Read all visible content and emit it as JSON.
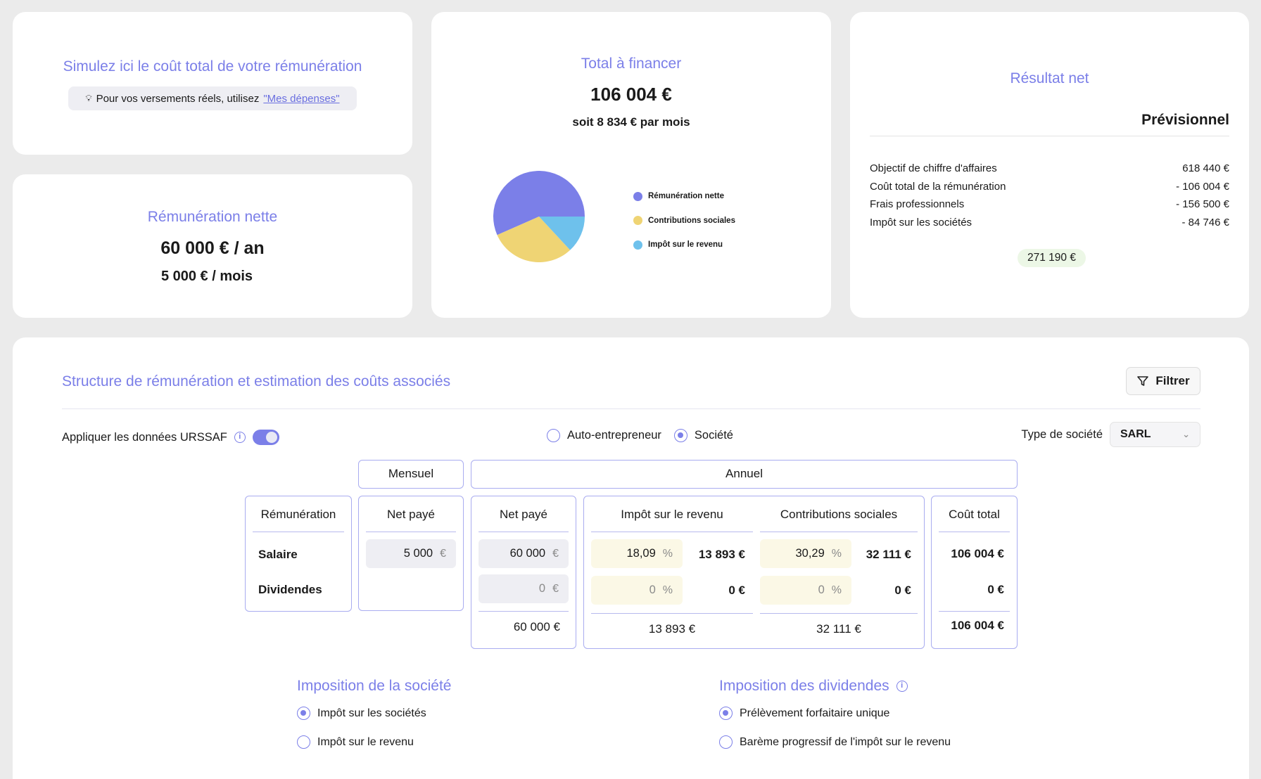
{
  "simulator": {
    "title": "Simulez ici le coût total de votre rémunération",
    "hint_text": "Pour vos versements réels, utilisez",
    "hint_link": "\"Mes dépenses\""
  },
  "net_pay": {
    "title": "Rémunération nette",
    "annual": "60 000 € / an",
    "monthly": "5 000 € / mois"
  },
  "total": {
    "title": "Total à financer",
    "amount": "106 004 €",
    "per_month": "soit 8 834 € par mois"
  },
  "chart_data": {
    "type": "pie",
    "categories": [
      "Rémunération nette",
      "Contributions sociales",
      "Impôt sur le revenu"
    ],
    "values": [
      60000,
      32111,
      13893
    ],
    "colors": [
      "#7b7fe8",
      "#efd474",
      "#6ec1ec"
    ]
  },
  "result": {
    "title": "Résultat net",
    "column": "Prévisionnel",
    "rows": [
      {
        "label": "Objectif de chiffre d'affaires",
        "value": "618 440 €"
      },
      {
        "label": "Coût total de la rémunération",
        "value": "- 106 004 €"
      },
      {
        "label": "Frais professionnels",
        "value": "- 156 500 €"
      },
      {
        "label": "Impôt sur les sociétés",
        "value": "- 84 746 €"
      }
    ],
    "total": "271 190 €"
  },
  "structure": {
    "title": "Structure de rémunération et estimation des coûts associés",
    "filter_label": "Filtrer",
    "urssaf_label": "Appliquer les données URSSAF",
    "urssaf_on": true,
    "status_options": [
      "Auto-entrepreneur",
      "Société"
    ],
    "status_selected": "Société",
    "company_type_label": "Type de société",
    "company_type_value": "SARL"
  },
  "table": {
    "group_monthly": "Mensuel",
    "group_annual": "Annuel",
    "col_remuneration": "Rémunération",
    "col_net_monthly": "Net payé",
    "col_net_annual": "Net payé",
    "col_income_tax": "Impôt sur le revenu",
    "col_social": "Contributions sociales",
    "col_total": "Coût total",
    "currency": "€",
    "percent": "%",
    "rows": [
      {
        "label": "Salaire",
        "net_monthly": "5 000",
        "net_annual": "60 000",
        "tax_rate": "18,09",
        "tax_amount": "13 893 €",
        "social_rate": "30,29",
        "social_amount": "32 111 €",
        "total": "106 004 €"
      },
      {
        "label": "Dividendes",
        "net_annual": "0",
        "tax_rate": "0",
        "tax_amount": "0 €",
        "social_rate": "0",
        "social_amount": "0 €",
        "total": "0 €"
      }
    ],
    "totals": {
      "net_annual": "60 000 €",
      "tax": "13 893 €",
      "social": "32 111 €",
      "total": "106 004 €"
    }
  },
  "company_tax": {
    "title": "Imposition de la société",
    "options": [
      "Impôt sur les sociétés",
      "Impôt sur le revenu"
    ],
    "selected": "Impôt sur les sociétés"
  },
  "dividend_tax": {
    "title": "Imposition des dividendes",
    "options": [
      "Prélèvement forfaitaire unique",
      "Barème progressif de l'impôt sur le revenu"
    ],
    "selected": "Prélèvement forfaitaire unique"
  }
}
